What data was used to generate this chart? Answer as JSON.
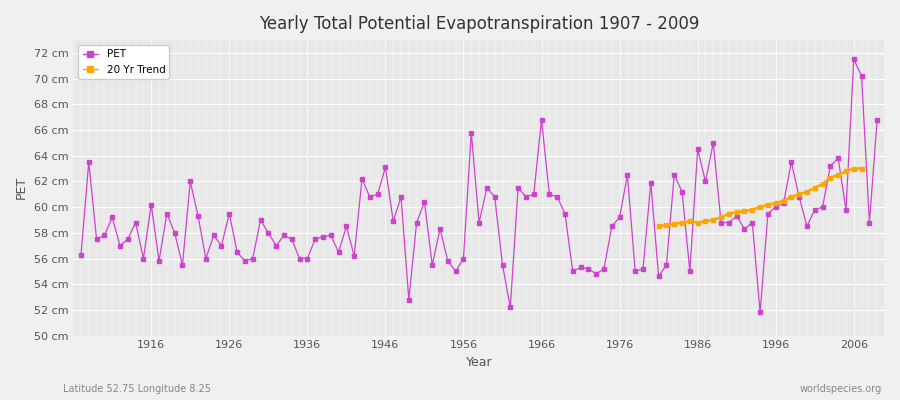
{
  "title": "Yearly Total Potential Evapotranspiration 1907 - 2009",
  "xlabel": "Year",
  "ylabel": "PET",
  "subtitle": "Latitude 52.75 Longitude 8.25",
  "watermark": "worldspecies.org",
  "pet_color": "#cc44cc",
  "trend_color": "#ffa500",
  "background_color": "#f0f0f0",
  "plot_bg_color": "#e8e8e8",
  "ylim": [
    50,
    73
  ],
  "yticks": [
    50,
    52,
    54,
    56,
    58,
    60,
    62,
    64,
    66,
    68,
    70,
    72
  ],
  "xticks": [
    1916,
    1926,
    1936,
    1946,
    1956,
    1966,
    1976,
    1986,
    1996,
    2006
  ],
  "years": [
    1907,
    1908,
    1909,
    1910,
    1911,
    1912,
    1913,
    1914,
    1915,
    1916,
    1917,
    1918,
    1919,
    1920,
    1921,
    1922,
    1923,
    1924,
    1925,
    1926,
    1927,
    1928,
    1929,
    1930,
    1931,
    1932,
    1933,
    1934,
    1935,
    1936,
    1937,
    1938,
    1939,
    1940,
    1941,
    1942,
    1943,
    1944,
    1945,
    1946,
    1947,
    1948,
    1949,
    1950,
    1951,
    1952,
    1953,
    1954,
    1955,
    1956,
    1957,
    1958,
    1959,
    1960,
    1961,
    1962,
    1963,
    1964,
    1965,
    1966,
    1967,
    1968,
    1969,
    1970,
    1971,
    1972,
    1973,
    1974,
    1975,
    1976,
    1977,
    1978,
    1979,
    1980,
    1981,
    1982,
    1983,
    1984,
    1985,
    1986,
    1987,
    1988,
    1989,
    1990,
    1991,
    1992,
    1993,
    1994,
    1995,
    1996,
    1997,
    1998,
    1999,
    2000,
    2001,
    2002,
    2003,
    2004,
    2005,
    2006,
    2007,
    2008,
    2009
  ],
  "pet_values": [
    56.3,
    63.5,
    57.5,
    57.8,
    59.2,
    57.0,
    57.5,
    58.8,
    56.0,
    60.2,
    55.8,
    59.5,
    58.0,
    55.5,
    62.0,
    59.3,
    56.0,
    57.8,
    57.0,
    59.5,
    56.5,
    55.8,
    56.0,
    59.0,
    58.0,
    57.0,
    57.8,
    57.5,
    56.0,
    56.0,
    57.5,
    57.7,
    57.8,
    56.5,
    58.5,
    56.2,
    62.2,
    60.8,
    61.0,
    63.1,
    58.9,
    60.8,
    52.8,
    58.8,
    60.4,
    55.5,
    58.3,
    55.8,
    55.0,
    56.0,
    65.8,
    58.8,
    61.5,
    60.8,
    55.5,
    52.2,
    61.5,
    60.8,
    61.0,
    66.8,
    61.0,
    60.8,
    59.5,
    55.0,
    55.3,
    55.2,
    54.8,
    55.2,
    58.5,
    59.2,
    62.5,
    55.0,
    55.2,
    61.9,
    54.6,
    55.5,
    62.5,
    61.2,
    55.0,
    64.5,
    62.0,
    65.0,
    58.8,
    58.8,
    59.3,
    58.3,
    58.8,
    51.8,
    59.5,
    60.0,
    60.3,
    63.5,
    60.8,
    58.5,
    59.8,
    60.0,
    63.2,
    63.8,
    59.8,
    71.5,
    70.2,
    58.8,
    66.8
  ],
  "trend_years": [
    1981,
    1982,
    1983,
    1984,
    1985,
    1986,
    1987,
    1988,
    1989,
    1990,
    1991,
    1992,
    1993,
    1994,
    1995,
    1996,
    1997,
    1998,
    1999,
    2000,
    2001,
    2002,
    2003,
    2004,
    2005,
    2006,
    2007,
    2008,
    2009
  ],
  "trend_values": [
    58.5,
    58.6,
    58.7,
    58.8,
    58.9,
    58.8,
    58.9,
    59.0,
    59.2,
    59.5,
    59.6,
    59.7,
    59.8,
    60.0,
    60.2,
    60.3,
    60.5,
    60.8,
    61.0,
    61.2,
    61.5,
    61.8,
    62.3,
    62.5,
    62.8,
    63.0,
    63.0,
    null,
    null
  ]
}
